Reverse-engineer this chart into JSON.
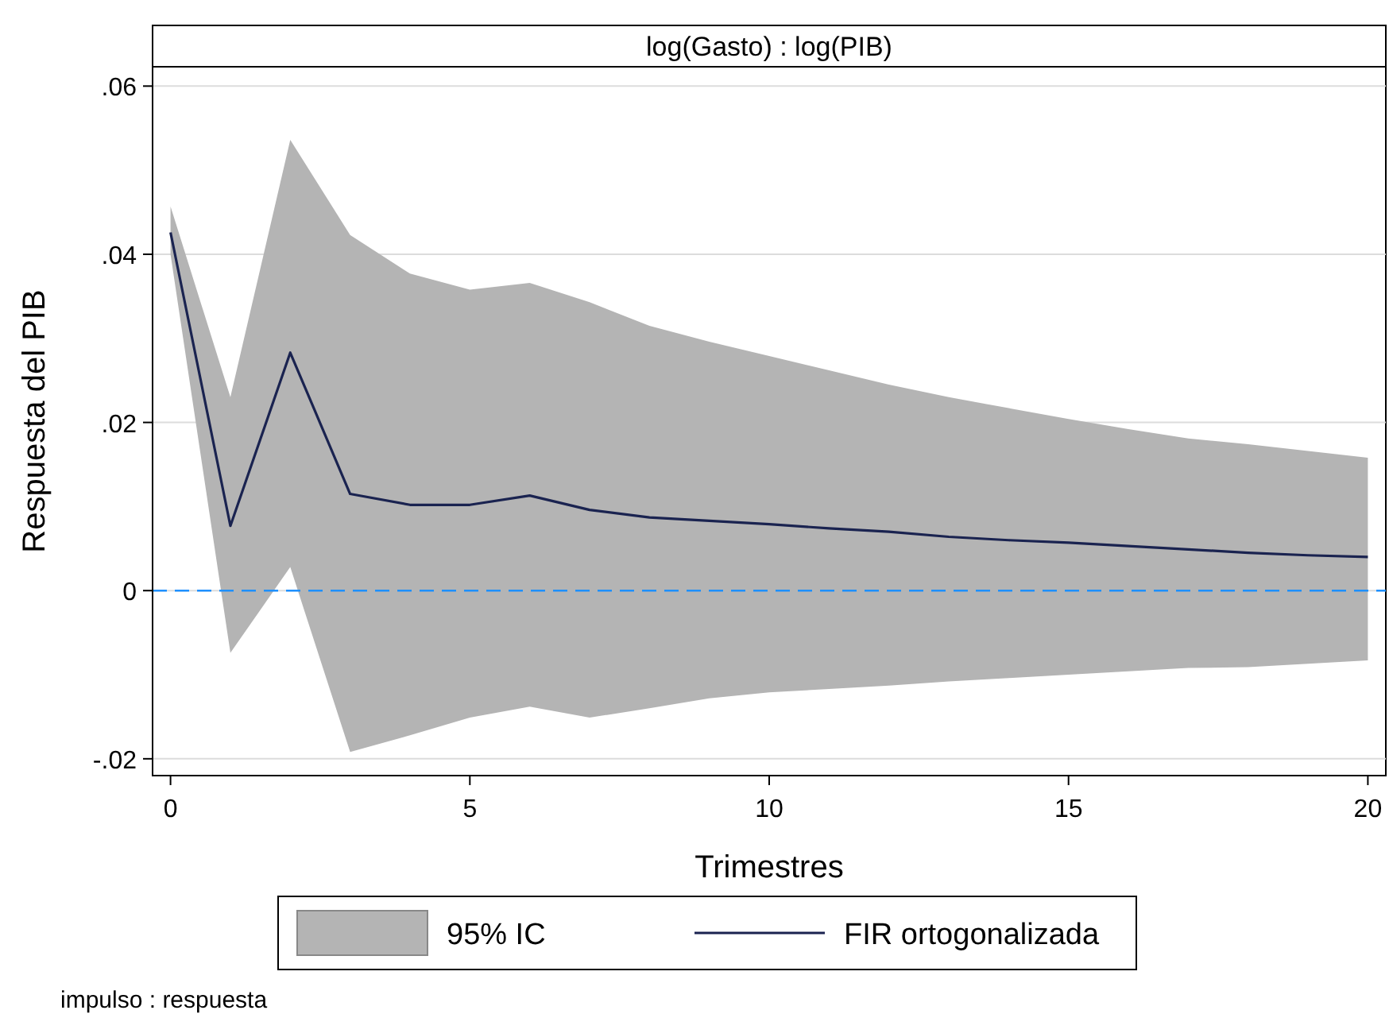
{
  "chart_data": {
    "type": "line",
    "title": "log(Gasto) : log(PIB)",
    "xlabel": "Trimestres",
    "ylabel": "Respuesta del PIB",
    "x": [
      0,
      1,
      2,
      3,
      4,
      5,
      6,
      7,
      8,
      9,
      10,
      11,
      12,
      13,
      14,
      15,
      16,
      17,
      18,
      19,
      20
    ],
    "series": [
      {
        "name": "FIR ortogonalizada",
        "color": "#1a2350",
        "values": [
          0.0426,
          0.0077,
          0.0283,
          0.0115,
          0.0102,
          0.0102,
          0.0113,
          0.0096,
          0.0087,
          0.0083,
          0.0079,
          0.0074,
          0.007,
          0.0064,
          0.006,
          0.0057,
          0.0053,
          0.0049,
          0.0045,
          0.0042,
          0.004
        ],
        "lower": [
          0.04,
          -0.0074,
          0.0028,
          -0.0192,
          -0.0172,
          -0.0151,
          -0.0138,
          -0.0151,
          -0.014,
          -0.0128,
          -0.0121,
          -0.0117,
          -0.0113,
          -0.0108,
          -0.0104,
          -0.01,
          -0.0096,
          -0.0092,
          -0.0091,
          -0.0087,
          -0.0083
        ],
        "upper": [
          0.0457,
          0.023,
          0.0536,
          0.0423,
          0.0377,
          0.0358,
          0.0366,
          0.0343,
          0.0315,
          0.0296,
          0.0279,
          0.0262,
          0.0245,
          0.023,
          0.0217,
          0.0204,
          0.0192,
          0.0181,
          0.0174,
          0.0166,
          0.0158
        ]
      }
    ],
    "xlim": [
      -0.3,
      20.3
    ],
    "xticks": [
      0,
      5,
      10,
      15,
      20
    ],
    "ylim": [
      -0.022,
      0.0623
    ],
    "yticks": [
      {
        "value": -0.02,
        "label": "-.02"
      },
      {
        "value": 0,
        "label": "0"
      },
      {
        "value": 0.02,
        "label": ".02"
      },
      {
        "value": 0.04,
        "label": ".04"
      },
      {
        "value": 0.06,
        "label": ".06"
      }
    ],
    "ref_lines": [
      {
        "axis": "y",
        "value": 0,
        "color": "#1e90ff",
        "line_style": "dashed"
      }
    ],
    "grid": "y",
    "legend": "bottom",
    "marker": "none",
    "line_style": "solid",
    "annotations": [
      "95% IC",
      "impulso : respuesta"
    ]
  }
}
